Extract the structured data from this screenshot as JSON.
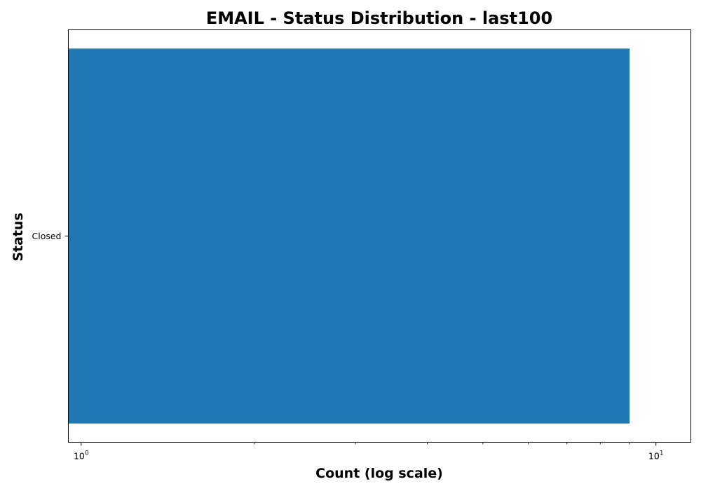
{
  "chart_data": {
    "type": "bar",
    "orientation": "horizontal",
    "title": "EMAIL - Status Distribution - last100",
    "xlabel": "Count (log scale)",
    "ylabel": "Status",
    "categories": [
      "Closed"
    ],
    "values": [
      9
    ],
    "xscale": "log",
    "xlim": [
      0.95,
      11.5
    ],
    "xticks": [
      {
        "value": 1,
        "base": "10",
        "exp": "0"
      },
      {
        "value": 10,
        "base": "10",
        "exp": "1"
      }
    ],
    "grid": false,
    "colors": {
      "bar": "#1f77b4",
      "axis": "#000000",
      "background": "#ffffff"
    }
  }
}
